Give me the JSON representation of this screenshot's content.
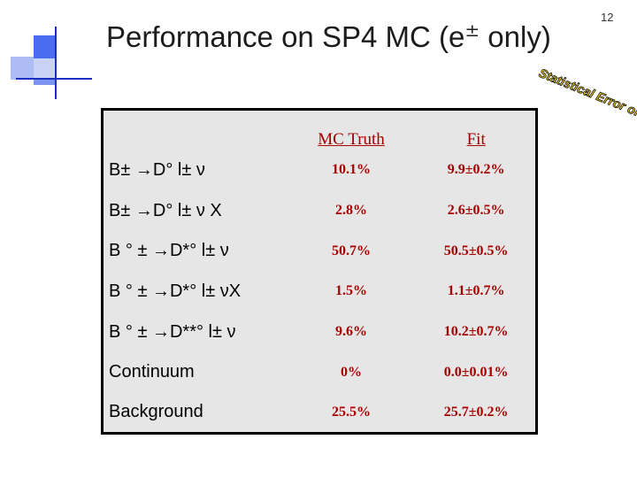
{
  "slide": {
    "title_prefix": "Performance on SP4 MC (e",
    "title_pm": "±",
    "title_suffix": " only)",
    "page_number": "12"
  },
  "stamp": {
    "text": "Statistical Error only"
  },
  "table": {
    "headers": [
      "",
      "MC Truth",
      "Fit"
    ],
    "rows": [
      {
        "label": "B± →D° l± ν",
        "mc_truth": "10.1%",
        "fit": "9.9±0.2%"
      },
      {
        "label": "B± →D° l± ν X",
        "mc_truth": "2.8%",
        "fit": "2.6±0.5%"
      },
      {
        "label": "B ° ± →D*° l± ν",
        "mc_truth": "50.7%",
        "fit": "50.5±0.5%"
      },
      {
        "label": "B ° ± →D*° l± νX",
        "mc_truth": "1.5%",
        "fit": "1.1±0.7%"
      },
      {
        "label": "B ° ± →D**° l± ν",
        "mc_truth": "9.6%",
        "fit": "10.2±0.7%"
      },
      {
        "label": "Continuum",
        "mc_truth": "0%",
        "fit": "0.0±0.01%"
      },
      {
        "label": "Background",
        "mc_truth": "25.5%",
        "fit": "25.7±0.2%"
      }
    ]
  }
}
